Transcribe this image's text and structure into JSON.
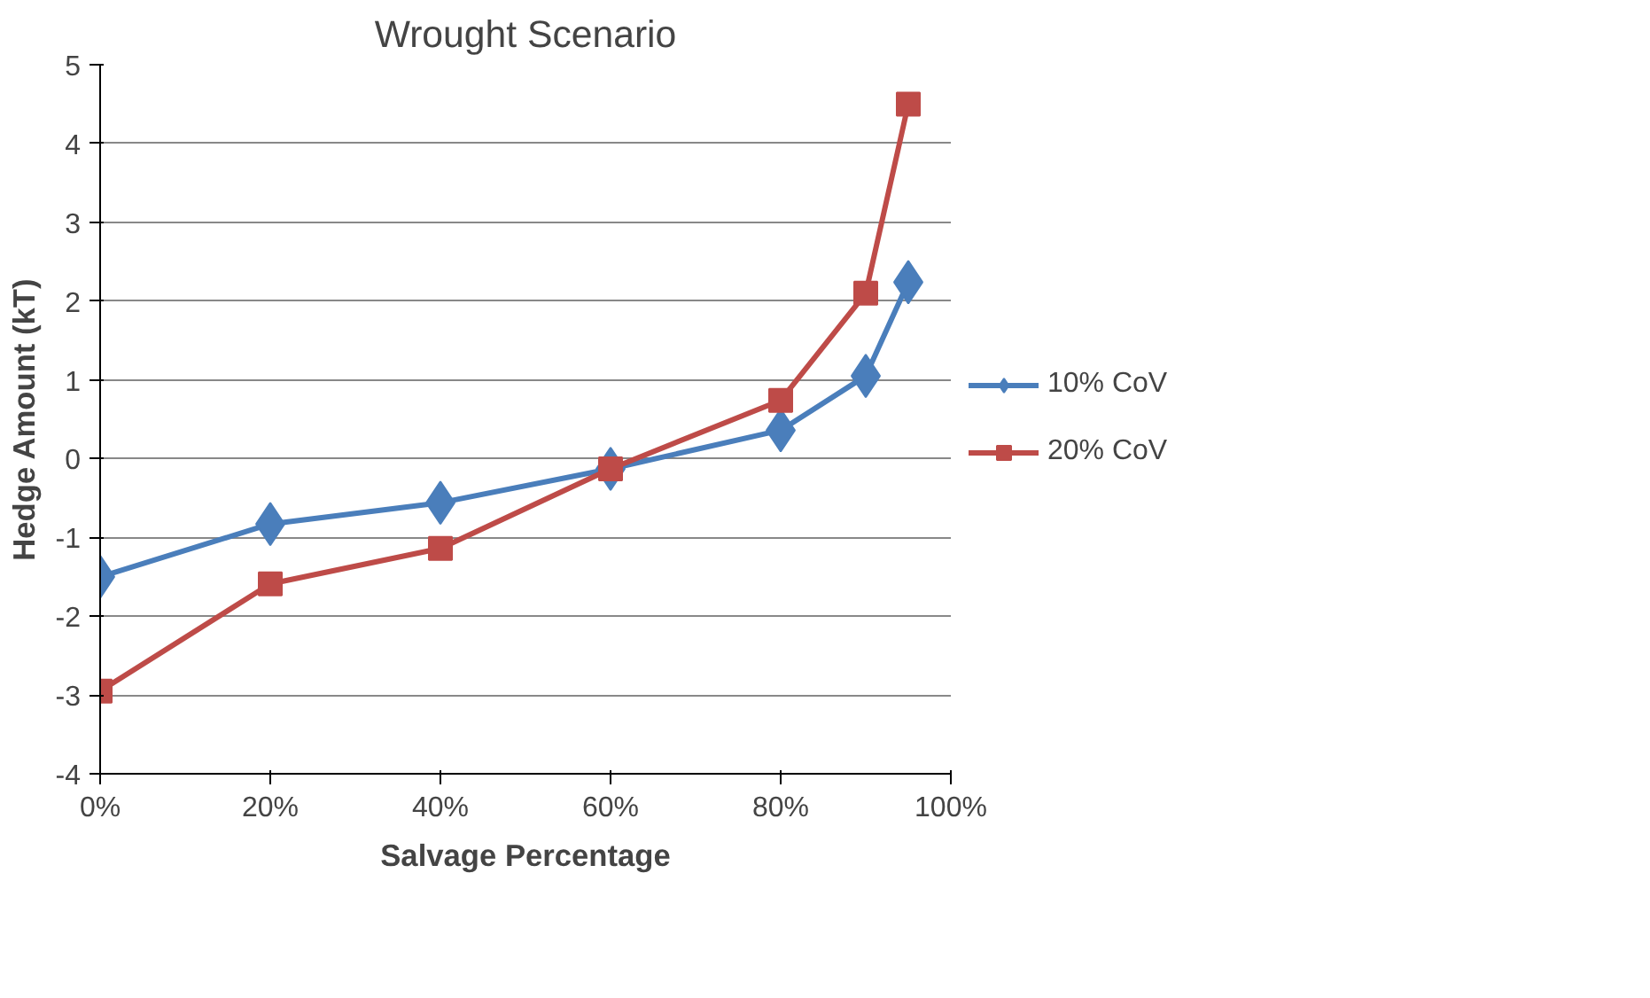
{
  "chart_data": {
    "type": "line",
    "title": "Wrought Scenario",
    "xlabel": "Salvage Percentage",
    "ylabel": "Hedge Amount (kT)",
    "x": [
      0,
      20,
      40,
      60,
      80,
      90,
      95
    ],
    "series": [
      {
        "name": "10% CoV",
        "color": "#4a7ebb",
        "marker": "diamond",
        "values": [
          -1.5,
          -0.83,
          -0.56,
          -0.13,
          0.36,
          1.05,
          2.24
        ]
      },
      {
        "name": "20% CoV",
        "color": "#be4b48",
        "marker": "square",
        "values": [
          -2.95,
          -1.59,
          -1.14,
          -0.13,
          0.74,
          2.1,
          4.5
        ]
      }
    ],
    "xlim": [
      0,
      100
    ],
    "xticks": [
      {
        "value": 0,
        "label": "0%"
      },
      {
        "value": 20,
        "label": "20%"
      },
      {
        "value": 40,
        "label": "40%"
      },
      {
        "value": 60,
        "label": "60%"
      },
      {
        "value": 80,
        "label": "80%"
      },
      {
        "value": 100,
        "label": "100%"
      }
    ],
    "ylim": [
      -4,
      5
    ],
    "yticks": [
      -4,
      -3,
      -2,
      -1,
      0,
      1,
      2,
      3,
      4,
      5
    ],
    "grid": "y",
    "legend": "right",
    "line_style": "solid"
  }
}
